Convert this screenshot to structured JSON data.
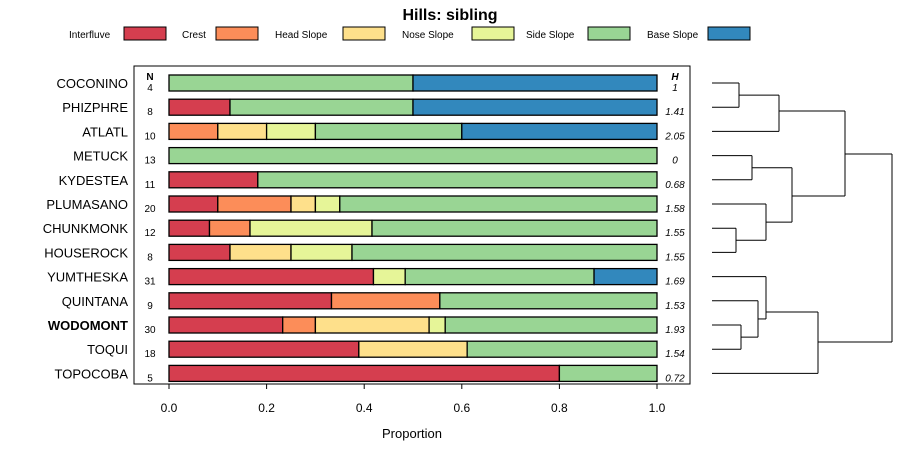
{
  "chart_data": {
    "type": "bar",
    "orientation": "horizontal",
    "stacked": true,
    "title": "Hills: sibling",
    "xlabel": "Proportion",
    "xlim": [
      0,
      1
    ],
    "xticks": [
      "0.0",
      "0.2",
      "0.4",
      "0.6",
      "0.8",
      "1.0"
    ],
    "n_header": "N",
    "h_header": "H",
    "legend": [
      {
        "name": "Interfluve",
        "color": "#D53E4F"
      },
      {
        "name": "Crest",
        "color": "#FC8D59"
      },
      {
        "name": "Head Slope",
        "color": "#FEE08B"
      },
      {
        "name": "Nose Slope",
        "color": "#E6F598"
      },
      {
        "name": "Side Slope",
        "color": "#99D594"
      },
      {
        "name": "Base Slope",
        "color": "#3288BD"
      }
    ],
    "rows": [
      {
        "label": "COCONINO",
        "n": "4",
        "h": "1",
        "bold": false,
        "values": [
          0,
          0,
          0,
          0,
          0.5,
          0.5
        ]
      },
      {
        "label": "PHIZPHRE",
        "n": "8",
        "h": "1.41",
        "bold": false,
        "values": [
          0.125,
          0,
          0,
          0,
          0.375,
          0.5
        ]
      },
      {
        "label": "ATLATL",
        "n": "10",
        "h": "2.05",
        "bold": false,
        "values": [
          0,
          0.1,
          0.1,
          0.1,
          0.3,
          0.4
        ]
      },
      {
        "label": "METUCK",
        "n": "13",
        "h": "0",
        "bold": false,
        "values": [
          0,
          0,
          0,
          0,
          1.0,
          0
        ]
      },
      {
        "label": "KYDESTEA",
        "n": "11",
        "h": "0.68",
        "bold": false,
        "values": [
          0.182,
          0,
          0,
          0,
          0.818,
          0
        ]
      },
      {
        "label": "PLUMASANO",
        "n": "20",
        "h": "1.58",
        "bold": false,
        "values": [
          0.1,
          0.15,
          0.05,
          0.05,
          0.65,
          0
        ]
      },
      {
        "label": "CHUNKMONK",
        "n": "12",
        "h": "1.55",
        "bold": false,
        "values": [
          0.083,
          0.083,
          0,
          0.25,
          0.584,
          0
        ]
      },
      {
        "label": "HOUSEROCK",
        "n": "8",
        "h": "1.55",
        "bold": false,
        "values": [
          0.125,
          0,
          0.125,
          0.125,
          0.625,
          0
        ]
      },
      {
        "label": "YUMTHESKA",
        "n": "31",
        "h": "1.69",
        "bold": false,
        "values": [
          0.419,
          0,
          0,
          0.065,
          0.387,
          0.129
        ]
      },
      {
        "label": "QUINTANA",
        "n": "9",
        "h": "1.53",
        "bold": false,
        "values": [
          0.333,
          0.222,
          0,
          0,
          0.445,
          0
        ]
      },
      {
        "label": "WODOMONT",
        "n": "30",
        "h": "1.93",
        "bold": true,
        "values": [
          0.233,
          0.067,
          0.233,
          0.033,
          0.434,
          0
        ]
      },
      {
        "label": "TOQUI",
        "n": "18",
        "h": "1.54",
        "bold": false,
        "values": [
          0.389,
          0,
          0.222,
          0,
          0.389,
          0
        ]
      },
      {
        "label": "TOPOCOBA",
        "n": "5",
        "h": "0.72",
        "bold": false,
        "values": [
          0.8,
          0,
          0,
          0,
          0.2,
          0
        ]
      }
    ]
  }
}
